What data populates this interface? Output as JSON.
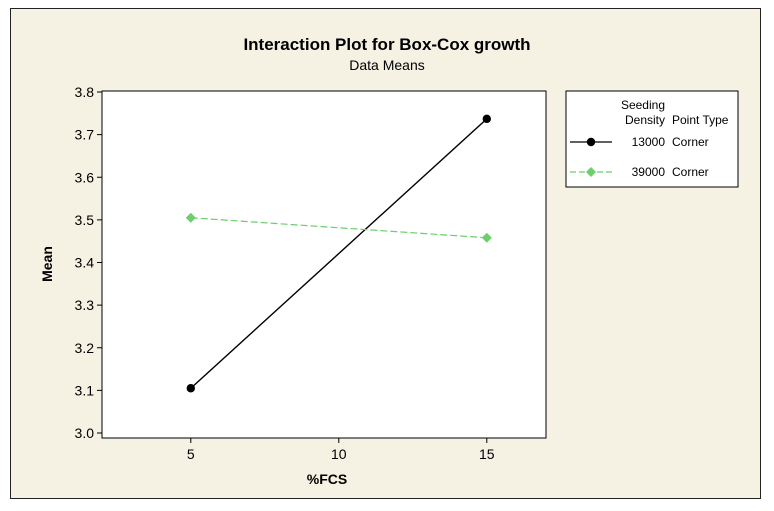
{
  "chart_data": {
    "type": "line",
    "title": "Interaction Plot for Box-Cox growth",
    "subtitle": "Data Means",
    "xlabel": "%FCS",
    "ylabel": "Mean",
    "x": [
      5,
      15
    ],
    "xticks": [
      5,
      10,
      15
    ],
    "xlim": [
      2,
      17
    ],
    "yticks": [
      3.0,
      3.1,
      3.2,
      3.3,
      3.4,
      3.5,
      3.6,
      3.7,
      3.8
    ],
    "ylim": [
      3.0,
      3.8
    ],
    "grid": false,
    "legend": {
      "placement": "right",
      "header1": "Seeding",
      "header2": "Density",
      "header3": "Point Type"
    },
    "series": [
      {
        "density": "13000",
        "point_type": "Corner",
        "values": [
          3.105,
          3.737
        ],
        "color": "#000000",
        "marker": "circle",
        "dash": "solid"
      },
      {
        "density": "39000",
        "point_type": "Corner",
        "values": [
          3.505,
          3.458
        ],
        "color": "#6ccf6c",
        "marker": "diamond",
        "dash": "dashed"
      }
    ]
  }
}
